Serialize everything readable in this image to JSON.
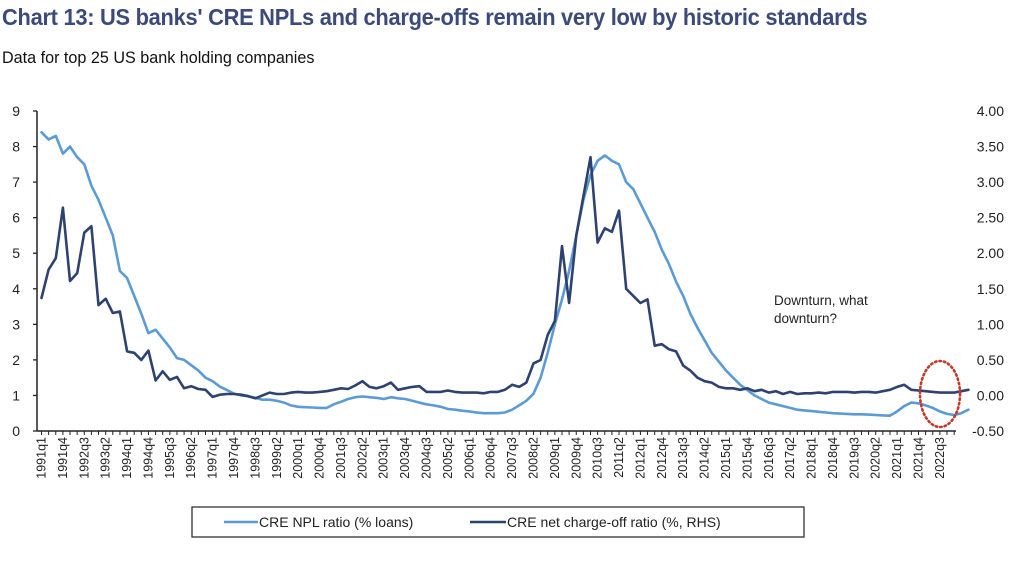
{
  "header": {
    "title": "Chart 13: US banks' CRE NPLs and charge-offs remain very low by historic standards",
    "subtitle": "Data for top 25 US bank holding companies"
  },
  "chart_data": {
    "type": "line",
    "title": "Chart 13: US banks' CRE NPLs and charge-offs remain very low by historic standards",
    "subtitle": "Data for top 25 US bank holding companies",
    "xlabel": "",
    "ylabel": "",
    "y_left": {
      "range": [
        0,
        9
      ],
      "ticks": [
        "0",
        "1",
        "2",
        "3",
        "4",
        "5",
        "6",
        "7",
        "8",
        "9"
      ]
    },
    "y_right": {
      "range": [
        -0.5,
        4.0
      ],
      "ticks": [
        "-0.50",
        "0.00",
        "0.50",
        "1.00",
        "1.50",
        "2.00",
        "2.50",
        "3.00",
        "3.50",
        "4.00"
      ]
    },
    "x_start": "1991q1",
    "x_end": "2023q1",
    "x_tick_labels": [
      "1991q1",
      "1991q4",
      "1992q3",
      "1993q2",
      "1994q1",
      "1994q4",
      "1995q3",
      "1996q2",
      "1997q1",
      "1997q4",
      "1998q3",
      "1999q2",
      "2000q1",
      "2000q4",
      "2001q3",
      "2002q2",
      "2003q1",
      "2003q4",
      "2004q3",
      "2005q2",
      "2006q1",
      "2006q4",
      "2007q3",
      "2008q2",
      "2009q1",
      "2009q4",
      "2010q3",
      "2011q2",
      "2012q1",
      "2012q4",
      "2013q3",
      "2014q2",
      "2015q1",
      "2015q4",
      "2016q3",
      "2017q2",
      "2018q1",
      "2018q4",
      "2019q3",
      "2020q2",
      "2021q1",
      "2021q4",
      "2022q3"
    ],
    "grid": false,
    "legend_position": "bottom",
    "series": [
      {
        "name": "CRE NPL ratio (% loans)",
        "axis": "left",
        "color": "#5b9bd5",
        "values": [
          8.4,
          8.2,
          8.3,
          7.8,
          8.0,
          7.7,
          7.5,
          6.9,
          6.5,
          6.0,
          5.5,
          4.5,
          4.3,
          3.8,
          3.3,
          2.75,
          2.85,
          2.6,
          2.35,
          2.05,
          2.0,
          1.85,
          1.7,
          1.5,
          1.4,
          1.25,
          1.15,
          1.05,
          1.0,
          0.98,
          0.93,
          0.88,
          0.88,
          0.85,
          0.8,
          0.72,
          0.68,
          0.67,
          0.66,
          0.65,
          0.65,
          0.75,
          0.82,
          0.9,
          0.95,
          0.97,
          0.95,
          0.93,
          0.9,
          0.95,
          0.92,
          0.9,
          0.85,
          0.8,
          0.75,
          0.72,
          0.68,
          0.62,
          0.6,
          0.57,
          0.55,
          0.52,
          0.5,
          0.5,
          0.5,
          0.52,
          0.6,
          0.72,
          0.85,
          1.05,
          1.5,
          2.2,
          3.0,
          3.7,
          4.5,
          5.5,
          6.5,
          7.2,
          7.6,
          7.75,
          7.6,
          7.5,
          7.0,
          6.8,
          6.4,
          6.0,
          5.6,
          5.1,
          4.7,
          4.2,
          3.8,
          3.3,
          2.9,
          2.55,
          2.2,
          1.95,
          1.7,
          1.5,
          1.3,
          1.15,
          1.0,
          0.9,
          0.8,
          0.75,
          0.7,
          0.65,
          0.6,
          0.58,
          0.56,
          0.54,
          0.52,
          0.5,
          0.49,
          0.48,
          0.47,
          0.47,
          0.46,
          0.45,
          0.44,
          0.43,
          0.55,
          0.7,
          0.8,
          0.78,
          0.72,
          0.65,
          0.55,
          0.48,
          0.45,
          0.5,
          0.6
        ]
      },
      {
        "name": "CRE net charge-off ratio (%, RHS)",
        "axis": "right",
        "color": "#2e4272",
        "values": [
          1.37,
          1.77,
          1.93,
          2.64,
          1.61,
          1.72,
          2.29,
          2.38,
          1.27,
          1.36,
          1.16,
          1.18,
          0.62,
          0.6,
          0.5,
          0.63,
          0.21,
          0.34,
          0.22,
          0.26,
          0.1,
          0.13,
          0.09,
          0.08,
          -0.02,
          0.01,
          0.02,
          0.02,
          0.01,
          -0.01,
          -0.04,
          0.0,
          0.04,
          0.02,
          0.02,
          0.04,
          0.05,
          0.04,
          0.04,
          0.05,
          0.06,
          0.08,
          0.1,
          0.09,
          0.14,
          0.2,
          0.12,
          0.1,
          0.13,
          0.18,
          0.08,
          0.1,
          0.12,
          0.13,
          0.05,
          0.05,
          0.05,
          0.07,
          0.05,
          0.04,
          0.04,
          0.04,
          0.03,
          0.05,
          0.05,
          0.08,
          0.15,
          0.12,
          0.18,
          0.45,
          0.5,
          0.85,
          1.05,
          2.1,
          1.3,
          2.25,
          2.8,
          3.35,
          2.15,
          2.35,
          2.3,
          2.6,
          1.5,
          1.4,
          1.3,
          1.35,
          0.7,
          0.72,
          0.65,
          0.62,
          0.42,
          0.35,
          0.25,
          0.2,
          0.18,
          0.12,
          0.1,
          0.1,
          0.08,
          0.1,
          0.06,
          0.08,
          0.04,
          0.06,
          0.02,
          0.05,
          0.02,
          0.03,
          0.03,
          0.04,
          0.03,
          0.05,
          0.05,
          0.05,
          0.04,
          0.05,
          0.05,
          0.04,
          0.06,
          0.08,
          0.12,
          0.15,
          0.08,
          0.07,
          0.06,
          0.05,
          0.04,
          0.04,
          0.04,
          0.06,
          0.08
        ]
      }
    ],
    "annotations": [
      {
        "text_lines": [
          "Downturn, what",
          "downturn?"
        ],
        "points_to": "2021q4-2023q1 (dotted red ellipse)"
      }
    ],
    "highlight_color": "#c0392b"
  }
}
